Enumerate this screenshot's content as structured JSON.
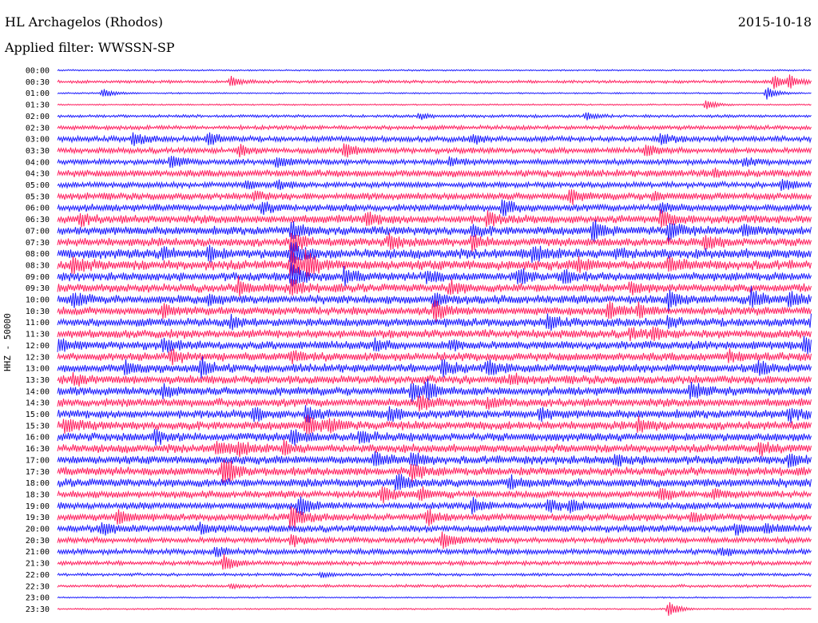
{
  "header": {
    "title": "HL Archagelos (Rhodos)",
    "date": "2015-10-18",
    "filter": "Applied filter: WWSSN-SP"
  },
  "chart_data": {
    "type": "line",
    "title": "HL Archagelos (Rhodos)",
    "ylabel": "HHZ - 50000",
    "colors": [
      "#1a1aff",
      "#ff2060"
    ],
    "rows": [
      "00:00",
      "00:30",
      "01:00",
      "01:30",
      "02:00",
      "02:30",
      "03:00",
      "03:30",
      "04:00",
      "04:30",
      "05:00",
      "05:30",
      "06:00",
      "06:30",
      "07:00",
      "07:30",
      "08:00",
      "08:30",
      "09:00",
      "09:30",
      "10:00",
      "10:30",
      "11:00",
      "11:30",
      "12:00",
      "12:30",
      "13:00",
      "13:30",
      "14:00",
      "14:30",
      "15:00",
      "15:30",
      "16:00",
      "16:30",
      "17:00",
      "17:30",
      "18:00",
      "18:30",
      "19:00",
      "19:30",
      "20:00",
      "20:30",
      "21:00",
      "21:30",
      "22:00",
      "22:30",
      "23:00",
      "23:30"
    ],
    "noise_level": [
      1,
      2,
      1,
      1,
      2,
      3,
      4,
      4,
      4,
      5,
      4,
      5,
      5,
      6,
      6,
      6,
      7,
      7,
      6,
      6,
      6,
      6,
      6,
      6,
      6,
      6,
      6,
      6,
      6,
      6,
      6,
      6,
      6,
      6,
      6,
      6,
      6,
      5,
      5,
      5,
      5,
      4,
      4,
      3,
      2,
      2,
      1,
      1
    ],
    "events": [
      {
        "row": "00:30",
        "t": 0.23,
        "amp": 7
      },
      {
        "row": "00:30",
        "t": 0.95,
        "amp": 9
      },
      {
        "row": "00:30",
        "t": 0.97,
        "amp": 8
      },
      {
        "row": "01:00",
        "t": 0.06,
        "amp": 6
      },
      {
        "row": "01:00",
        "t": 0.94,
        "amp": 8
      },
      {
        "row": "01:30",
        "t": 0.86,
        "amp": 6
      },
      {
        "row": "02:00",
        "t": 0.48,
        "amp": 4
      },
      {
        "row": "02:00",
        "t": 0.7,
        "amp": 5
      },
      {
        "row": "03:00",
        "t": 0.1,
        "amp": 8
      },
      {
        "row": "03:00",
        "t": 0.2,
        "amp": 9
      },
      {
        "row": "03:00",
        "t": 0.55,
        "amp": 5
      },
      {
        "row": "03:00",
        "t": 0.8,
        "amp": 7
      },
      {
        "row": "03:30",
        "t": 0.24,
        "amp": 7
      },
      {
        "row": "03:30",
        "t": 0.38,
        "amp": 10
      },
      {
        "row": "03:30",
        "t": 0.78,
        "amp": 7
      },
      {
        "row": "04:00",
        "t": 0.15,
        "amp": 8
      },
      {
        "row": "04:00",
        "t": 0.29,
        "amp": 7
      },
      {
        "row": "04:00",
        "t": 0.52,
        "amp": 5
      },
      {
        "row": "04:00",
        "t": 0.91,
        "amp": 5
      },
      {
        "row": "04:30",
        "t": 0.87,
        "amp": 5
      },
      {
        "row": "05:00",
        "t": 0.25,
        "amp": 5
      },
      {
        "row": "05:00",
        "t": 0.29,
        "amp": 5
      },
      {
        "row": "05:00",
        "t": 0.96,
        "amp": 7
      },
      {
        "row": "05:30",
        "t": 0.26,
        "amp": 5
      },
      {
        "row": "05:30",
        "t": 0.68,
        "amp": 8
      },
      {
        "row": "05:30",
        "t": 0.79,
        "amp": 5
      },
      {
        "row": "06:00",
        "t": 0.27,
        "amp": 6
      },
      {
        "row": "06:00",
        "t": 0.59,
        "amp": 10
      },
      {
        "row": "06:00",
        "t": 0.8,
        "amp": 5
      },
      {
        "row": "06:30",
        "t": 0.03,
        "amp": 6
      },
      {
        "row": "06:30",
        "t": 0.41,
        "amp": 7
      },
      {
        "row": "06:30",
        "t": 0.57,
        "amp": 8
      },
      {
        "row": "06:30",
        "t": 0.8,
        "amp": 9
      },
      {
        "row": "07:00",
        "t": 0.31,
        "amp": 10
      },
      {
        "row": "07:00",
        "t": 0.55,
        "amp": 6
      },
      {
        "row": "07:00",
        "t": 0.71,
        "amp": 12
      },
      {
        "row": "07:00",
        "t": 0.81,
        "amp": 12
      },
      {
        "row": "07:00",
        "t": 0.91,
        "amp": 8
      },
      {
        "row": "07:30",
        "t": 0.31,
        "amp": 14
      },
      {
        "row": "07:30",
        "t": 0.44,
        "amp": 9
      },
      {
        "row": "07:30",
        "t": 0.55,
        "amp": 8
      },
      {
        "row": "07:30",
        "t": 0.86,
        "amp": 8
      },
      {
        "row": "08:00",
        "t": 0.31,
        "amp": 16
      },
      {
        "row": "08:00",
        "t": 0.2,
        "amp": 8
      },
      {
        "row": "08:00",
        "t": 0.14,
        "amp": 6
      },
      {
        "row": "08:00",
        "t": 0.63,
        "amp": 9
      },
      {
        "row": "08:00",
        "t": 0.74,
        "amp": 5
      },
      {
        "row": "08:30",
        "t": 0.31,
        "amp": 18
      },
      {
        "row": "08:30",
        "t": 0.33,
        "amp": 14
      },
      {
        "row": "08:30",
        "t": 0.02,
        "amp": 9
      },
      {
        "row": "08:30",
        "t": 0.69,
        "amp": 7
      },
      {
        "row": "08:30",
        "t": 0.81,
        "amp": 7
      },
      {
        "row": "09:00",
        "t": 0.31,
        "amp": 16
      },
      {
        "row": "09:00",
        "t": 0.38,
        "amp": 9
      },
      {
        "row": "09:00",
        "t": 0.49,
        "amp": 8
      },
      {
        "row": "09:00",
        "t": 0.61,
        "amp": 9
      },
      {
        "row": "09:00",
        "t": 0.67,
        "amp": 8
      },
      {
        "row": "09:30",
        "t": 0.24,
        "amp": 10
      },
      {
        "row": "09:30",
        "t": 0.31,
        "amp": 10
      },
      {
        "row": "09:30",
        "t": 0.52,
        "amp": 8
      },
      {
        "row": "09:30",
        "t": 0.76,
        "amp": 6
      },
      {
        "row": "10:00",
        "t": 0.02,
        "amp": 9
      },
      {
        "row": "10:00",
        "t": 0.2,
        "amp": 7
      },
      {
        "row": "10:00",
        "t": 0.5,
        "amp": 10
      },
      {
        "row": "10:00",
        "t": 0.81,
        "amp": 12
      },
      {
        "row": "10:00",
        "t": 0.92,
        "amp": 12
      },
      {
        "row": "10:00",
        "t": 0.97,
        "amp": 10
      },
      {
        "row": "10:30",
        "t": 0.5,
        "amp": 12
      },
      {
        "row": "10:30",
        "t": 0.73,
        "amp": 10
      },
      {
        "row": "10:30",
        "t": 0.77,
        "amp": 8
      },
      {
        "row": "10:30",
        "t": 0.14,
        "amp": 7
      },
      {
        "row": "11:00",
        "t": 0.23,
        "amp": 6
      },
      {
        "row": "11:00",
        "t": 0.65,
        "amp": 9
      },
      {
        "row": "11:00",
        "t": 0.81,
        "amp": 6
      },
      {
        "row": "11:00",
        "t": 1.0,
        "amp": 9
      },
      {
        "row": "11:30",
        "t": 0.76,
        "amp": 6
      },
      {
        "row": "11:30",
        "t": 0.79,
        "amp": 6
      },
      {
        "row": "12:00",
        "t": 0.0,
        "amp": 8
      },
      {
        "row": "12:00",
        "t": 0.14,
        "amp": 7
      },
      {
        "row": "12:00",
        "t": 0.42,
        "amp": 6
      },
      {
        "row": "12:00",
        "t": 0.52,
        "amp": 6
      },
      {
        "row": "12:00",
        "t": 0.99,
        "amp": 9
      },
      {
        "row": "12:30",
        "t": 0.15,
        "amp": 7
      },
      {
        "row": "12:30",
        "t": 0.31,
        "amp": 7
      },
      {
        "row": "12:30",
        "t": 0.89,
        "amp": 6
      },
      {
        "row": "13:00",
        "t": 0.09,
        "amp": 8
      },
      {
        "row": "13:00",
        "t": 0.19,
        "amp": 12
      },
      {
        "row": "13:00",
        "t": 0.51,
        "amp": 10
      },
      {
        "row": "13:00",
        "t": 0.57,
        "amp": 9
      },
      {
        "row": "13:00",
        "t": 0.93,
        "amp": 8
      },
      {
        "row": "13:30",
        "t": 0.02,
        "amp": 6
      },
      {
        "row": "13:30",
        "t": 0.6,
        "amp": 6
      },
      {
        "row": "14:00",
        "t": 0.14,
        "amp": 8
      },
      {
        "row": "14:00",
        "t": 0.47,
        "amp": 10
      },
      {
        "row": "14:00",
        "t": 0.49,
        "amp": 10
      },
      {
        "row": "14:00",
        "t": 0.84,
        "amp": 10
      },
      {
        "row": "14:30",
        "t": 0.48,
        "amp": 9
      },
      {
        "row": "14:30",
        "t": 0.57,
        "amp": 6
      },
      {
        "row": "15:00",
        "t": 0.26,
        "amp": 8
      },
      {
        "row": "15:00",
        "t": 0.33,
        "amp": 10
      },
      {
        "row": "15:00",
        "t": 0.44,
        "amp": 8
      },
      {
        "row": "15:00",
        "t": 0.64,
        "amp": 6
      },
      {
        "row": "15:00",
        "t": 0.97,
        "amp": 8
      },
      {
        "row": "15:30",
        "t": 0.01,
        "amp": 9
      },
      {
        "row": "15:30",
        "t": 0.33,
        "amp": 14
      },
      {
        "row": "15:30",
        "t": 0.36,
        "amp": 8
      },
      {
        "row": "15:30",
        "t": 0.77,
        "amp": 8
      },
      {
        "row": "16:00",
        "t": 0.13,
        "amp": 8
      },
      {
        "row": "16:00",
        "t": 0.31,
        "amp": 9
      },
      {
        "row": "16:00",
        "t": 0.4,
        "amp": 8
      },
      {
        "row": "16:30",
        "t": 0.21,
        "amp": 8
      },
      {
        "row": "16:30",
        "t": 0.24,
        "amp": 8
      },
      {
        "row": "16:30",
        "t": 0.3,
        "amp": 7
      },
      {
        "row": "16:30",
        "t": 0.93,
        "amp": 8
      },
      {
        "row": "17:00",
        "t": 0.42,
        "amp": 8
      },
      {
        "row": "17:00",
        "t": 0.47,
        "amp": 8
      },
      {
        "row": "17:00",
        "t": 0.74,
        "amp": 6
      },
      {
        "row": "17:00",
        "t": 0.97,
        "amp": 7
      },
      {
        "row": "17:30",
        "t": 0.22,
        "amp": 18
      },
      {
        "row": "17:30",
        "t": 0.47,
        "amp": 10
      },
      {
        "row": "18:00",
        "t": 0.45,
        "amp": 12
      },
      {
        "row": "18:00",
        "t": 0.6,
        "amp": 6
      },
      {
        "row": "18:30",
        "t": 0.43,
        "amp": 12
      },
      {
        "row": "18:30",
        "t": 0.48,
        "amp": 8
      },
      {
        "row": "18:30",
        "t": 0.8,
        "amp": 8
      },
      {
        "row": "18:30",
        "t": 0.87,
        "amp": 6
      },
      {
        "row": "19:00",
        "t": 0.32,
        "amp": 12
      },
      {
        "row": "19:00",
        "t": 0.55,
        "amp": 8
      },
      {
        "row": "19:00",
        "t": 0.65,
        "amp": 8
      },
      {
        "row": "19:00",
        "t": 0.68,
        "amp": 8
      },
      {
        "row": "19:30",
        "t": 0.08,
        "amp": 9
      },
      {
        "row": "19:30",
        "t": 0.31,
        "amp": 16
      },
      {
        "row": "19:30",
        "t": 0.49,
        "amp": 9
      },
      {
        "row": "19:30",
        "t": 0.84,
        "amp": 6
      },
      {
        "row": "20:00",
        "t": 0.06,
        "amp": 8
      },
      {
        "row": "20:00",
        "t": 0.19,
        "amp": 6
      },
      {
        "row": "20:00",
        "t": 0.9,
        "amp": 6
      },
      {
        "row": "20:00",
        "t": 0.94,
        "amp": 6
      },
      {
        "row": "20:30",
        "t": 0.51,
        "amp": 12
      },
      {
        "row": "20:30",
        "t": 0.31,
        "amp": 8
      },
      {
        "row": "21:00",
        "t": 0.21,
        "amp": 7
      },
      {
        "row": "21:00",
        "t": 0.88,
        "amp": 5
      },
      {
        "row": "21:30",
        "t": 0.22,
        "amp": 12
      },
      {
        "row": "22:00",
        "t": 0.35,
        "amp": 3
      },
      {
        "row": "22:30",
        "t": 0.23,
        "amp": 3
      },
      {
        "row": "23:30",
        "t": 0.81,
        "amp": 10
      }
    ]
  }
}
